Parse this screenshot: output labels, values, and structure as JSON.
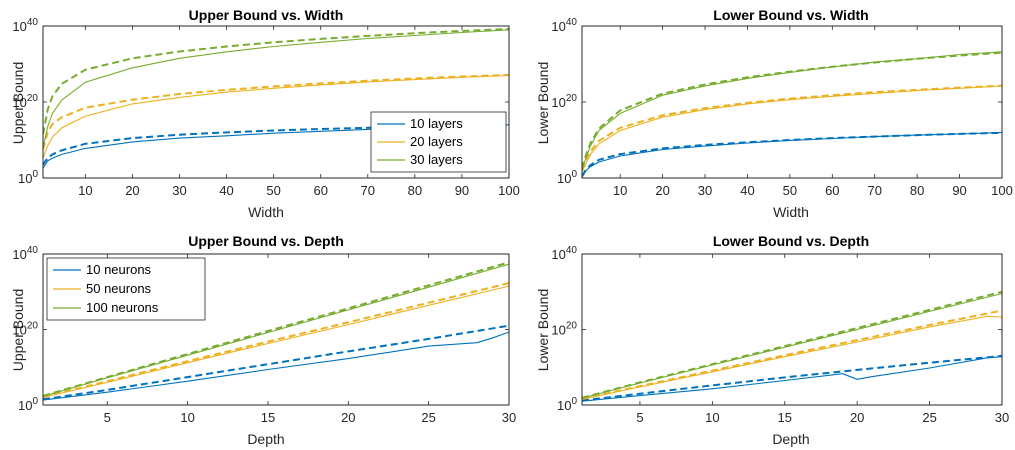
{
  "chart_data": [
    {
      "type": "line",
      "title": "Upper Bound vs. Width",
      "xlabel": "Width",
      "ylabel": "Upper Bound",
      "xlim": [
        1,
        100
      ],
      "ylim": [
        0,
        40
      ],
      "y_scale": "log10",
      "y_ticks": [
        {
          "base": "10",
          "exp": "0",
          "value": 0
        },
        {
          "base": "10",
          "exp": "20",
          "value": 20
        },
        {
          "base": "10",
          "exp": "40",
          "value": 40
        }
      ],
      "x_ticks": [
        "10",
        "20",
        "30",
        "40",
        "50",
        "60",
        "70",
        "80",
        "90",
        "100"
      ],
      "x_tick_values": [
        10,
        20,
        30,
        40,
        50,
        60,
        70,
        80,
        90,
        100
      ],
      "legend": {
        "position": "bottom-right",
        "entries": [
          "10 layers",
          "20 layers",
          "30 layers"
        ]
      },
      "grid": false,
      "series": [
        {
          "name": "10 layers",
          "color": "#0072BD",
          "style": "solid",
          "x": [
            1,
            2,
            3,
            5,
            10,
            20,
            30,
            40,
            50,
            60,
            70,
            80,
            90,
            100
          ],
          "y": [
            2.6,
            4.5,
            5.2,
            6.2,
            7.8,
            9.5,
            10.5,
            11.1,
            11.8,
            12.3,
            12.8,
            13.2,
            13.5,
            14.0
          ]
        },
        {
          "name": "10 layers (dashed)",
          "color": "#0072BD",
          "style": "dashed",
          "x": [
            1,
            2,
            3,
            5,
            10,
            20,
            30,
            40,
            50,
            60,
            70,
            80,
            90,
            100
          ],
          "y": [
            3.5,
            5.3,
            6.2,
            7.3,
            9.0,
            10.5,
            11.4,
            12.0,
            12.5,
            12.9,
            13.2,
            13.5,
            13.7,
            13.9
          ]
        },
        {
          "name": "20 layers",
          "color": "#EDB120",
          "style": "solid",
          "x": [
            1,
            2,
            3,
            5,
            10,
            20,
            30,
            40,
            50,
            60,
            70,
            80,
            90,
            100
          ],
          "y": [
            5.2,
            8.5,
            10.8,
            13.2,
            16.3,
            19.5,
            21.2,
            22.6,
            23.6,
            24.5,
            25.3,
            25.9,
            26.5,
            27.0
          ]
        },
        {
          "name": "20 layers (dashed)",
          "color": "#EDB120",
          "style": "dashed",
          "x": [
            1,
            2,
            3,
            5,
            10,
            20,
            30,
            40,
            50,
            60,
            70,
            80,
            90,
            100
          ],
          "y": [
            7.5,
            12.0,
            14.2,
            16.0,
            18.5,
            20.6,
            22.1,
            23.2,
            24.1,
            24.9,
            25.6,
            26.2,
            26.7,
            27.1
          ]
        },
        {
          "name": "30 layers",
          "color": "#77AC30",
          "style": "solid",
          "x": [
            1,
            2,
            3,
            5,
            10,
            20,
            30,
            40,
            50,
            60,
            70,
            80,
            90,
            100
          ],
          "y": [
            8.0,
            13.5,
            17.0,
            20.5,
            25.2,
            29.0,
            31.5,
            33.2,
            34.6,
            35.7,
            36.7,
            37.5,
            38.3,
            39.0
          ]
        },
        {
          "name": "30 layers (dashed)",
          "color": "#77AC30",
          "style": "dashed",
          "x": [
            1,
            2,
            3,
            5,
            10,
            20,
            30,
            40,
            50,
            60,
            70,
            80,
            90,
            100
          ],
          "y": [
            11.5,
            18.0,
            21.5,
            24.8,
            28.5,
            31.5,
            33.3,
            34.6,
            35.7,
            36.6,
            37.4,
            38.1,
            38.7,
            39.2
          ]
        }
      ]
    },
    {
      "type": "line",
      "title": "Lower Bound vs. Width",
      "xlabel": "Width",
      "ylabel": "Lower Bound",
      "xlim": [
        1,
        100
      ],
      "ylim": [
        0,
        40
      ],
      "y_scale": "log10",
      "y_ticks": [
        {
          "base": "10",
          "exp": "0",
          "value": 0
        },
        {
          "base": "10",
          "exp": "20",
          "value": 20
        },
        {
          "base": "10",
          "exp": "40",
          "value": 40
        }
      ],
      "x_ticks": [
        "10",
        "20",
        "30",
        "40",
        "50",
        "60",
        "70",
        "80",
        "90",
        "100"
      ],
      "x_tick_values": [
        10,
        20,
        30,
        40,
        50,
        60,
        70,
        80,
        90,
        100
      ],
      "grid": false,
      "series": [
        {
          "name": "10 layers",
          "color": "#0072BD",
          "style": "solid",
          "x": [
            1,
            2,
            3,
            5,
            10,
            20,
            30,
            40,
            50,
            60,
            70,
            80,
            90,
            100
          ],
          "y": [
            0.2,
            2.0,
            3.0,
            4.2,
            5.8,
            7.5,
            8.4,
            9.2,
            9.9,
            10.4,
            10.9,
            11.3,
            11.6,
            12.0
          ]
        },
        {
          "name": "10 layers (dashed)",
          "color": "#0072BD",
          "style": "dashed",
          "x": [
            1,
            2,
            3,
            5,
            10,
            20,
            30,
            40,
            50,
            60,
            70,
            80,
            90,
            100
          ],
          "y": [
            0.5,
            2.3,
            3.4,
            4.8,
            6.3,
            7.8,
            8.7,
            9.4,
            10.0,
            10.5,
            10.9,
            11.3,
            11.6,
            11.9
          ]
        },
        {
          "name": "20 layers",
          "color": "#EDB120",
          "style": "solid",
          "x": [
            1,
            2,
            3,
            5,
            10,
            20,
            30,
            40,
            50,
            60,
            70,
            80,
            90,
            100
          ],
          "y": [
            1.5,
            4.0,
            6.2,
            9.0,
            12.5,
            16.0,
            18.0,
            19.5,
            20.6,
            21.5,
            22.3,
            23.0,
            23.6,
            24.2
          ]
        },
        {
          "name": "20 layers (dashed)",
          "color": "#EDB120",
          "style": "dashed",
          "x": [
            1,
            2,
            3,
            5,
            10,
            20,
            30,
            40,
            50,
            60,
            70,
            80,
            90,
            100
          ],
          "y": [
            2.0,
            4.8,
            7.0,
            9.8,
            13.2,
            16.5,
            18.4,
            19.8,
            20.9,
            21.8,
            22.6,
            23.2,
            23.8,
            24.3
          ]
        },
        {
          "name": "30 layers",
          "color": "#77AC30",
          "style": "solid",
          "x": [
            1,
            2,
            3,
            5,
            10,
            20,
            30,
            40,
            50,
            60,
            70,
            80,
            90,
            100
          ],
          "y": [
            2.0,
            5.5,
            8.5,
            12.5,
            17.0,
            21.8,
            24.2,
            26.2,
            27.8,
            29.2,
            30.5,
            31.4,
            32.5,
            33.2
          ]
        },
        {
          "name": "30 layers (dashed)",
          "color": "#77AC30",
          "style": "dashed",
          "x": [
            1,
            2,
            3,
            5,
            10,
            20,
            30,
            40,
            50,
            60,
            70,
            80,
            90,
            100
          ],
          "y": [
            2.5,
            6.2,
            9.2,
            13.0,
            17.8,
            22.2,
            24.6,
            26.5,
            28.0,
            29.3,
            30.4,
            31.4,
            32.2,
            33.0
          ]
        }
      ]
    },
    {
      "type": "line",
      "title": "Upper Bound vs. Depth",
      "xlabel": "Depth",
      "ylabel": "Upper Bound",
      "xlim": [
        1,
        30
      ],
      "ylim": [
        0,
        40
      ],
      "y_scale": "log10",
      "y_ticks": [
        {
          "base": "10",
          "exp": "0",
          "value": 0
        },
        {
          "base": "10",
          "exp": "20",
          "value": 20
        },
        {
          "base": "10",
          "exp": "40",
          "value": 40
        }
      ],
      "x_ticks": [
        "5",
        "10",
        "15",
        "20",
        "25",
        "30"
      ],
      "x_tick_values": [
        5,
        10,
        15,
        20,
        25,
        30
      ],
      "legend": {
        "position": "top-left",
        "entries": [
          "10 neurons",
          "50 neurons",
          "100 neurons"
        ]
      },
      "grid": false,
      "series": [
        {
          "name": "10 neurons",
          "color": "#0072BD",
          "style": "solid",
          "x": [
            1,
            5,
            10,
            15,
            20,
            25,
            28,
            29,
            30
          ],
          "y": [
            1.3,
            3.4,
            6.3,
            9.4,
            12.3,
            15.6,
            16.5,
            17.8,
            19.3
          ]
        },
        {
          "name": "10 neurons (dashed)",
          "color": "#0072BD",
          "style": "dashed",
          "x": [
            1,
            5,
            10,
            15,
            20,
            25,
            30
          ],
          "y": [
            1.5,
            4.0,
            7.4,
            10.8,
            14.2,
            17.5,
            21.0
          ]
        },
        {
          "name": "50 neurons",
          "color": "#EDB120",
          "style": "solid",
          "x": [
            1,
            5,
            10,
            15,
            20,
            25,
            30
          ],
          "y": [
            2.0,
            6.0,
            11.2,
            16.3,
            21.3,
            26.4,
            31.5
          ]
        },
        {
          "name": "50 neurons (dashed)",
          "color": "#EDB120",
          "style": "dashed",
          "x": [
            1,
            5,
            10,
            15,
            20,
            25,
            30
          ],
          "y": [
            2.1,
            6.3,
            11.6,
            16.8,
            21.9,
            27.1,
            32.3
          ]
        },
        {
          "name": "100 neurons",
          "color": "#77AC30",
          "style": "solid",
          "x": [
            1,
            5,
            10,
            15,
            20,
            25,
            30
          ],
          "y": [
            2.3,
            7.2,
            13.2,
            19.2,
            25.2,
            31.2,
            37.3
          ]
        },
        {
          "name": "100 neurons (dashed)",
          "color": "#77AC30",
          "style": "dashed",
          "x": [
            1,
            5,
            10,
            15,
            20,
            25,
            30
          ],
          "y": [
            2.4,
            7.4,
            13.5,
            19.6,
            25.6,
            31.7,
            37.8
          ]
        }
      ]
    },
    {
      "type": "line",
      "title": "Lower Bound vs. Depth",
      "xlabel": "Depth",
      "ylabel": "Lower Bound",
      "xlim": [
        1,
        30
      ],
      "ylim": [
        0,
        40
      ],
      "y_scale": "log10",
      "y_ticks": [
        {
          "base": "10",
          "exp": "0",
          "value": 0
        },
        {
          "base": "10",
          "exp": "20",
          "value": 20
        },
        {
          "base": "10",
          "exp": "40",
          "value": 40
        }
      ],
      "x_ticks": [
        "5",
        "10",
        "15",
        "20",
        "25",
        "30"
      ],
      "x_tick_values": [
        5,
        10,
        15,
        20,
        25,
        30
      ],
      "grid": false,
      "series": [
        {
          "name": "10 neurons",
          "color": "#0072BD",
          "style": "solid",
          "x": [
            1,
            5,
            10,
            15,
            19,
            20,
            21,
            25,
            29,
            30
          ],
          "y": [
            1.0,
            2.5,
            4.3,
            6.5,
            8.3,
            6.8,
            7.5,
            9.8,
            12.5,
            12.8
          ]
        },
        {
          "name": "10 neurons (dashed)",
          "color": "#0072BD",
          "style": "dashed",
          "x": [
            1,
            5,
            10,
            15,
            20,
            25,
            30
          ],
          "y": [
            1.2,
            3.0,
            5.2,
            7.3,
            9.3,
            11.2,
            13.0
          ]
        },
        {
          "name": "50 neurons",
          "color": "#EDB120",
          "style": "solid",
          "x": [
            1,
            5,
            10,
            15,
            20,
            25,
            29,
            30
          ],
          "y": [
            1.5,
            4.8,
            8.8,
            12.8,
            16.7,
            20.7,
            23.5,
            23.3
          ]
        },
        {
          "name": "50 neurons (dashed)",
          "color": "#EDB120",
          "style": "dashed",
          "x": [
            1,
            5,
            10,
            15,
            20,
            25,
            30
          ],
          "y": [
            1.6,
            5.0,
            9.1,
            13.2,
            17.2,
            21.2,
            25.0
          ]
        },
        {
          "name": "100 neurons",
          "color": "#77AC30",
          "style": "solid",
          "x": [
            1,
            5,
            10,
            15,
            20,
            25,
            30
          ],
          "y": [
            1.8,
            5.8,
            10.6,
            15.3,
            20.0,
            24.8,
            29.5
          ]
        },
        {
          "name": "100 neurons (dashed)",
          "color": "#77AC30",
          "style": "dashed",
          "x": [
            1,
            5,
            10,
            15,
            20,
            25,
            30
          ],
          "y": [
            1.9,
            6.0,
            10.8,
            15.6,
            20.4,
            25.2,
            30.0
          ]
        }
      ]
    }
  ]
}
